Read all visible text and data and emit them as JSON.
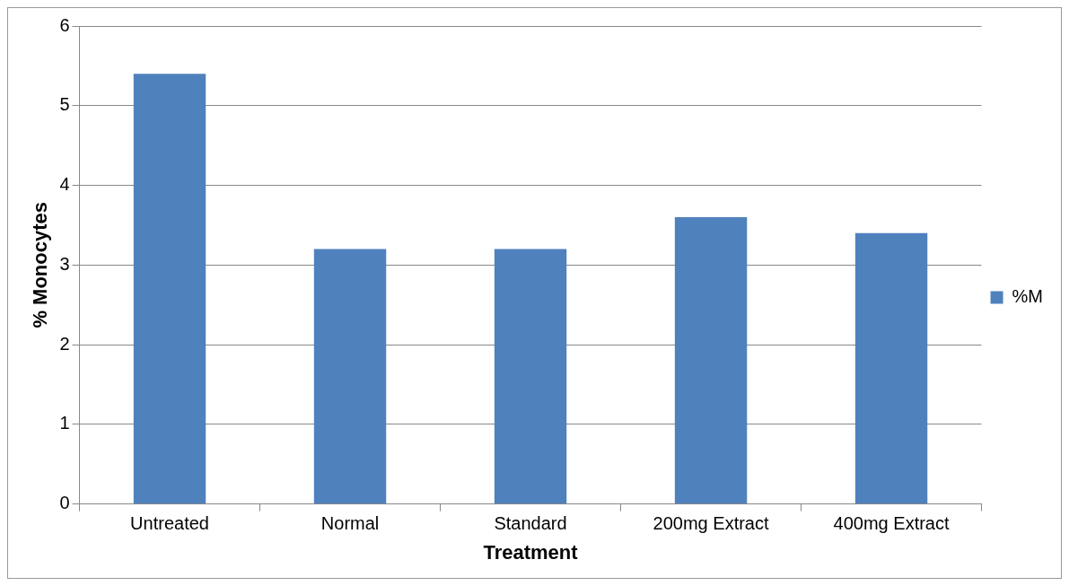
{
  "chart_data": {
    "type": "bar",
    "xlabel": "Treatment",
    "ylabel": "% Monocytes",
    "categories": [
      "Untreated",
      "Normal",
      "Standard",
      "200mg Extract",
      "400mg Extract"
    ],
    "series": [
      {
        "name": "%M",
        "color": "#4f81bd",
        "values": [
          5.4,
          3.2,
          3.2,
          3.6,
          3.4
        ]
      }
    ],
    "ylim": [
      0,
      6
    ],
    "yticks": [
      0,
      1,
      2,
      3,
      4,
      5,
      6
    ],
    "grid": "y",
    "legend": "right"
  }
}
